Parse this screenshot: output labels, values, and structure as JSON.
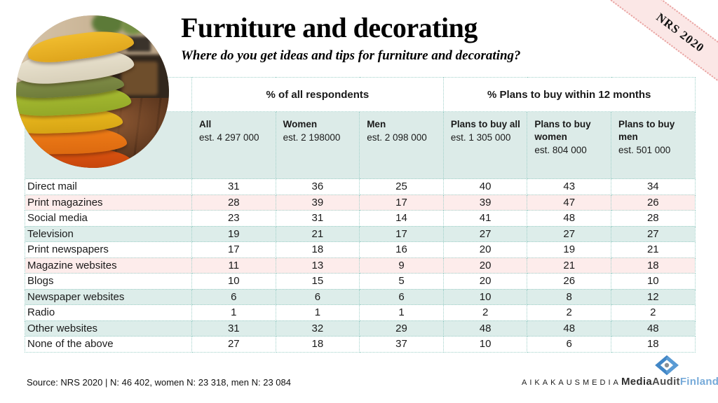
{
  "slide": {
    "title": "Furniture and decorating",
    "subtitle": "Where do you get ideas and tips for furniture  and decorating?",
    "ribbon": "NRS 2020",
    "source": "Source: NRS 2020 | N: 46 402, women N: 23 318, men N: 23 084"
  },
  "table": {
    "group_headers": [
      {
        "label": "% of all respondents"
      },
      {
        "label": "% Plans to buy within 12 months"
      }
    ],
    "columns": [
      {
        "name": "All",
        "est": "est. 4 297 000"
      },
      {
        "name": "Women",
        "est": "est. 2 198000"
      },
      {
        "name": "Men",
        "est": "est. 2 098 000"
      },
      {
        "name": "Plans to buy all",
        "est": "est. 1 305 000"
      },
      {
        "name": "Plans to buy women",
        "est": "est. 804 000"
      },
      {
        "name": "Plans to buy men",
        "est": "est. 501 000"
      }
    ],
    "rows": [
      {
        "label": "Direct mail",
        "bg": "white",
        "values": [
          31,
          36,
          25,
          40,
          43,
          34
        ]
      },
      {
        "label": "Print magazines",
        "bg": "pink",
        "values": [
          28,
          39,
          17,
          39,
          47,
          26
        ]
      },
      {
        "label": "Social media",
        "bg": "white",
        "values": [
          23,
          31,
          14,
          41,
          48,
          28
        ]
      },
      {
        "label": "Television",
        "bg": "teal",
        "values": [
          19,
          21,
          17,
          27,
          27,
          27
        ]
      },
      {
        "label": "Print newspapers",
        "bg": "white",
        "values": [
          17,
          18,
          16,
          20,
          19,
          21
        ]
      },
      {
        "label": "Magazine websites",
        "bg": "pink",
        "values": [
          11,
          13,
          9,
          20,
          21,
          18
        ]
      },
      {
        "label": "Blogs",
        "bg": "white",
        "values": [
          10,
          15,
          5,
          20,
          26,
          10
        ]
      },
      {
        "label": "Newspaper websites",
        "bg": "teal",
        "values": [
          6,
          6,
          6,
          10,
          8,
          12
        ]
      },
      {
        "label": "Radio",
        "bg": "white",
        "values": [
          1,
          1,
          1,
          2,
          2,
          2
        ]
      },
      {
        "label": "Other websites",
        "bg": "teal",
        "values": [
          31,
          32,
          29,
          48,
          48,
          48
        ]
      },
      {
        "label": "None of the above",
        "bg": "white",
        "values": [
          27,
          18,
          37,
          10,
          6,
          18
        ]
      }
    ]
  },
  "footer": {
    "logo_aikakausmedia": "AIKAKAUSMEDIA",
    "logo_mediaaudit": {
      "part1": "Media",
      "part2": "Audit",
      "part3": "Finland"
    }
  },
  "colors": {
    "row_teal": "#ddedea",
    "row_pink": "#fdeceb",
    "header_band": "#dcebe8",
    "table_border": "#9fd0c9",
    "ribbon_fill": "#fbe7e6",
    "ribbon_edge": "#e9a2a0",
    "logo_blue": "#76aad9"
  }
}
